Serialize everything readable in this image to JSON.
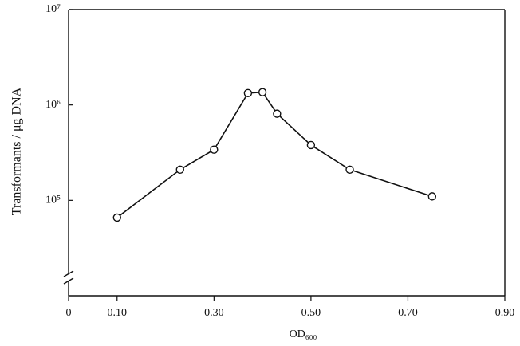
{
  "chart_data": {
    "type": "line",
    "xlabel": "OD₆₀₀",
    "ylabel": "Transformants / μg DNA",
    "x": [
      0.1,
      0.23,
      0.3,
      0.37,
      0.4,
      0.43,
      0.5,
      0.58,
      0.75
    ],
    "series": [
      {
        "color": "#111111",
        "values": [
          66000,
          210000,
          340000,
          1330000,
          1360000,
          810000,
          380000,
          210000,
          110000
        ]
      }
    ],
    "xlim": [
      0,
      0.9
    ],
    "xticks": [
      0,
      {
        "value": 0.1,
        "label": "0.10"
      },
      {
        "value": 0.3,
        "label": "0.30"
      },
      {
        "value": 0.5,
        "label": "0.50"
      },
      {
        "value": 0.7,
        "label": "0.70"
      },
      {
        "value": 0.9,
        "label": "0.90"
      }
    ],
    "ylim": [
      10000,
      10000000
    ],
    "yticks": [
      {
        "value": 100000,
        "label": "10⁵"
      },
      {
        "value": 1000000,
        "label": "10⁶"
      },
      {
        "value": 10000000,
        "label": "10⁷"
      }
    ],
    "ylog": true,
    "grid": false
  }
}
